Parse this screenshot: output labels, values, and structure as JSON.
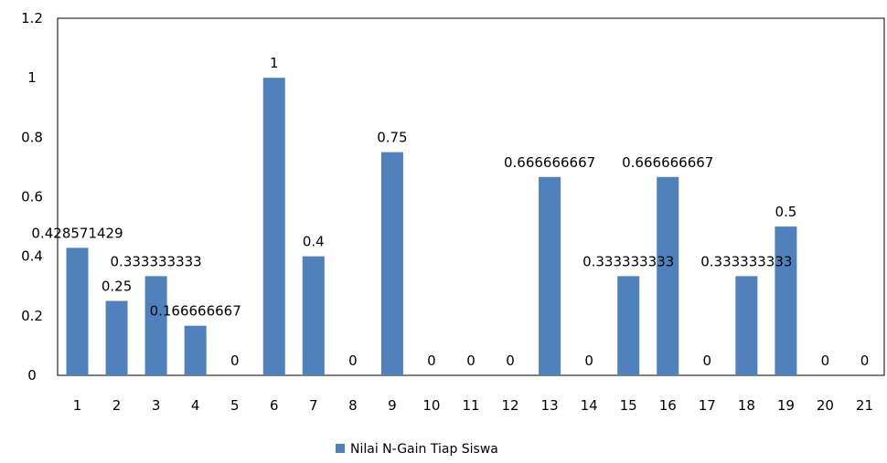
{
  "chart_data": {
    "type": "bar",
    "categories": [
      "1",
      "2",
      "3",
      "4",
      "5",
      "6",
      "7",
      "8",
      "9",
      "10",
      "11",
      "12",
      "13",
      "14",
      "15",
      "16",
      "17",
      "18",
      "19",
      "20",
      "21"
    ],
    "series": [
      {
        "name": "Nilai N-Gain Tiap Siswa",
        "color": "#4F81BD",
        "values": [
          0.428571429,
          0.25,
          0.333333333,
          0.166666667,
          0,
          1,
          0.4,
          0,
          0.75,
          0,
          0,
          0,
          0.666666667,
          0,
          0.333333333,
          0.666666667,
          0,
          0.333333333,
          0.5,
          0,
          0
        ],
        "data_labels": [
          "0.428571429",
          "0.25",
          "0.333333333",
          "0.166666667",
          "0",
          "1",
          "0.4",
          "0",
          "0.75",
          "0",
          "0",
          "0",
          "0.666666667",
          "0",
          "0.333333333",
          "0.666666667",
          "0",
          "0.333333333",
          "0.5",
          "0",
          "0"
        ]
      }
    ],
    "y_ticks": [
      "0",
      "0.2",
      "0.4",
      "0.6",
      "0.8",
      "1",
      "1.2"
    ],
    "ylim": [
      0,
      1.2
    ],
    "grid": false,
    "legend": "bottom"
  }
}
